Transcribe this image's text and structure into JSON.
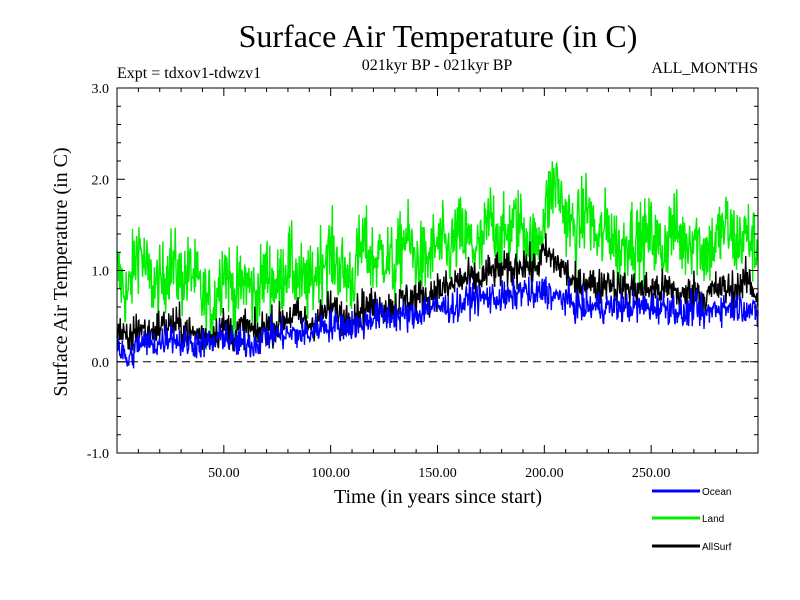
{
  "chart_data": {
    "type": "line",
    "title": "Surface Air Temperature (in C)",
    "subtitle": "021kyr BP - 021kyr BP",
    "experiment_label": "Expt = tdxov1-tdwzv1",
    "period_label": "ALL_MONTHS",
    "xlabel": "Time (in years since start)",
    "ylabel": "Surface Air Temperature (in C)",
    "xlim": [
      0,
      300
    ],
    "ylim": [
      -1.0,
      3.0
    ],
    "x_ticks": [
      {
        "value": 50,
        "label": "50.00"
      },
      {
        "value": 100,
        "label": "100.00"
      },
      {
        "value": 150,
        "label": "150.00"
      },
      {
        "value": 200,
        "label": "200.00"
      },
      {
        "value": 250,
        "label": "250.00"
      }
    ],
    "y_ticks": [
      {
        "value": -1.0,
        "label": "-1.0"
      },
      {
        "value": 0.0,
        "label": "0.0"
      },
      {
        "value": 1.0,
        "label": "1.0"
      },
      {
        "value": 2.0,
        "label": "2.0"
      },
      {
        "value": 3.0,
        "label": "3.0"
      }
    ],
    "reference_line": 0.0,
    "legend_position": "below-right",
    "series": [
      {
        "name": "Land",
        "color": "#00ee00",
        "x": [
          0,
          5,
          10,
          15,
          20,
          25,
          30,
          35,
          40,
          45,
          50,
          55,
          60,
          65,
          70,
          75,
          80,
          85,
          90,
          95,
          100,
          105,
          110,
          115,
          120,
          125,
          130,
          135,
          140,
          145,
          150,
          155,
          160,
          165,
          170,
          175,
          180,
          185,
          190,
          195,
          200,
          205,
          210,
          215,
          220,
          225,
          230,
          235,
          240,
          245,
          250,
          255,
          260,
          265,
          270,
          275,
          280,
          285,
          290,
          295,
          300
        ],
        "values": [
          1.0,
          0.7,
          1.3,
          0.9,
          0.8,
          1.1,
          0.9,
          1.0,
          0.7,
          0.6,
          1.1,
          0.7,
          0.9,
          0.7,
          1.0,
          0.8,
          1.1,
          0.9,
          0.8,
          1.1,
          1.2,
          1.0,
          0.9,
          1.3,
          1.1,
          1.2,
          1.0,
          1.4,
          1.1,
          1.1,
          1.3,
          1.2,
          1.4,
          1.3,
          1.2,
          1.6,
          1.3,
          1.5,
          1.5,
          1.2,
          1.6,
          2.0,
          1.6,
          1.4,
          1.7,
          1.3,
          1.5,
          1.2,
          1.4,
          1.3,
          1.4,
          1.2,
          1.5,
          1.3,
          1.4,
          1.2,
          1.3,
          1.5,
          1.3,
          1.4,
          1.2
        ]
      },
      {
        "name": "AllSurf",
        "color": "#000000",
        "x": [
          0,
          5,
          10,
          15,
          20,
          25,
          30,
          35,
          40,
          45,
          50,
          55,
          60,
          65,
          70,
          75,
          80,
          85,
          90,
          95,
          100,
          105,
          110,
          115,
          120,
          125,
          130,
          135,
          140,
          145,
          150,
          155,
          160,
          165,
          170,
          175,
          180,
          185,
          190,
          195,
          200,
          205,
          210,
          215,
          220,
          225,
          230,
          235,
          240,
          245,
          250,
          255,
          260,
          265,
          270,
          275,
          280,
          285,
          290,
          295,
          300
        ],
        "values": [
          0.4,
          0.2,
          0.4,
          0.3,
          0.4,
          0.4,
          0.4,
          0.3,
          0.3,
          0.3,
          0.4,
          0.3,
          0.4,
          0.3,
          0.4,
          0.4,
          0.5,
          0.5,
          0.4,
          0.5,
          0.6,
          0.5,
          0.5,
          0.6,
          0.6,
          0.6,
          0.6,
          0.7,
          0.7,
          0.7,
          0.8,
          0.8,
          0.9,
          0.9,
          0.9,
          1.0,
          1.0,
          1.0,
          1.1,
          1.0,
          1.2,
          1.1,
          1.0,
          0.8,
          0.9,
          0.8,
          0.9,
          0.8,
          0.8,
          0.8,
          0.8,
          0.8,
          0.8,
          0.7,
          0.8,
          0.7,
          0.8,
          0.8,
          0.8,
          0.9,
          0.7
        ]
      },
      {
        "name": "Ocean",
        "color": "#0000ff",
        "x": [
          0,
          5,
          10,
          15,
          20,
          25,
          30,
          35,
          40,
          45,
          50,
          55,
          60,
          65,
          70,
          75,
          80,
          85,
          90,
          95,
          100,
          105,
          110,
          115,
          120,
          125,
          130,
          135,
          140,
          145,
          150,
          155,
          160,
          165,
          170,
          175,
          180,
          185,
          190,
          195,
          200,
          205,
          210,
          215,
          220,
          225,
          230,
          235,
          240,
          245,
          250,
          255,
          260,
          265,
          270,
          275,
          280,
          285,
          290,
          295,
          300
        ],
        "values": [
          0.2,
          0.0,
          0.2,
          0.2,
          0.2,
          0.3,
          0.2,
          0.2,
          0.2,
          0.2,
          0.3,
          0.2,
          0.2,
          0.2,
          0.3,
          0.3,
          0.3,
          0.3,
          0.3,
          0.4,
          0.4,
          0.4,
          0.4,
          0.4,
          0.5,
          0.5,
          0.5,
          0.5,
          0.5,
          0.6,
          0.6,
          0.6,
          0.6,
          0.7,
          0.7,
          0.7,
          0.7,
          0.7,
          0.8,
          0.7,
          0.8,
          0.7,
          0.7,
          0.6,
          0.6,
          0.6,
          0.6,
          0.6,
          0.6,
          0.6,
          0.6,
          0.6,
          0.6,
          0.5,
          0.6,
          0.5,
          0.6,
          0.6,
          0.6,
          0.6,
          0.5
        ]
      }
    ]
  },
  "legend": {
    "items": [
      {
        "label": "Ocean",
        "color": "#0000ff"
      },
      {
        "label": "Land",
        "color": "#00ee00"
      },
      {
        "label": "AllSurf",
        "color": "#000000"
      }
    ]
  }
}
